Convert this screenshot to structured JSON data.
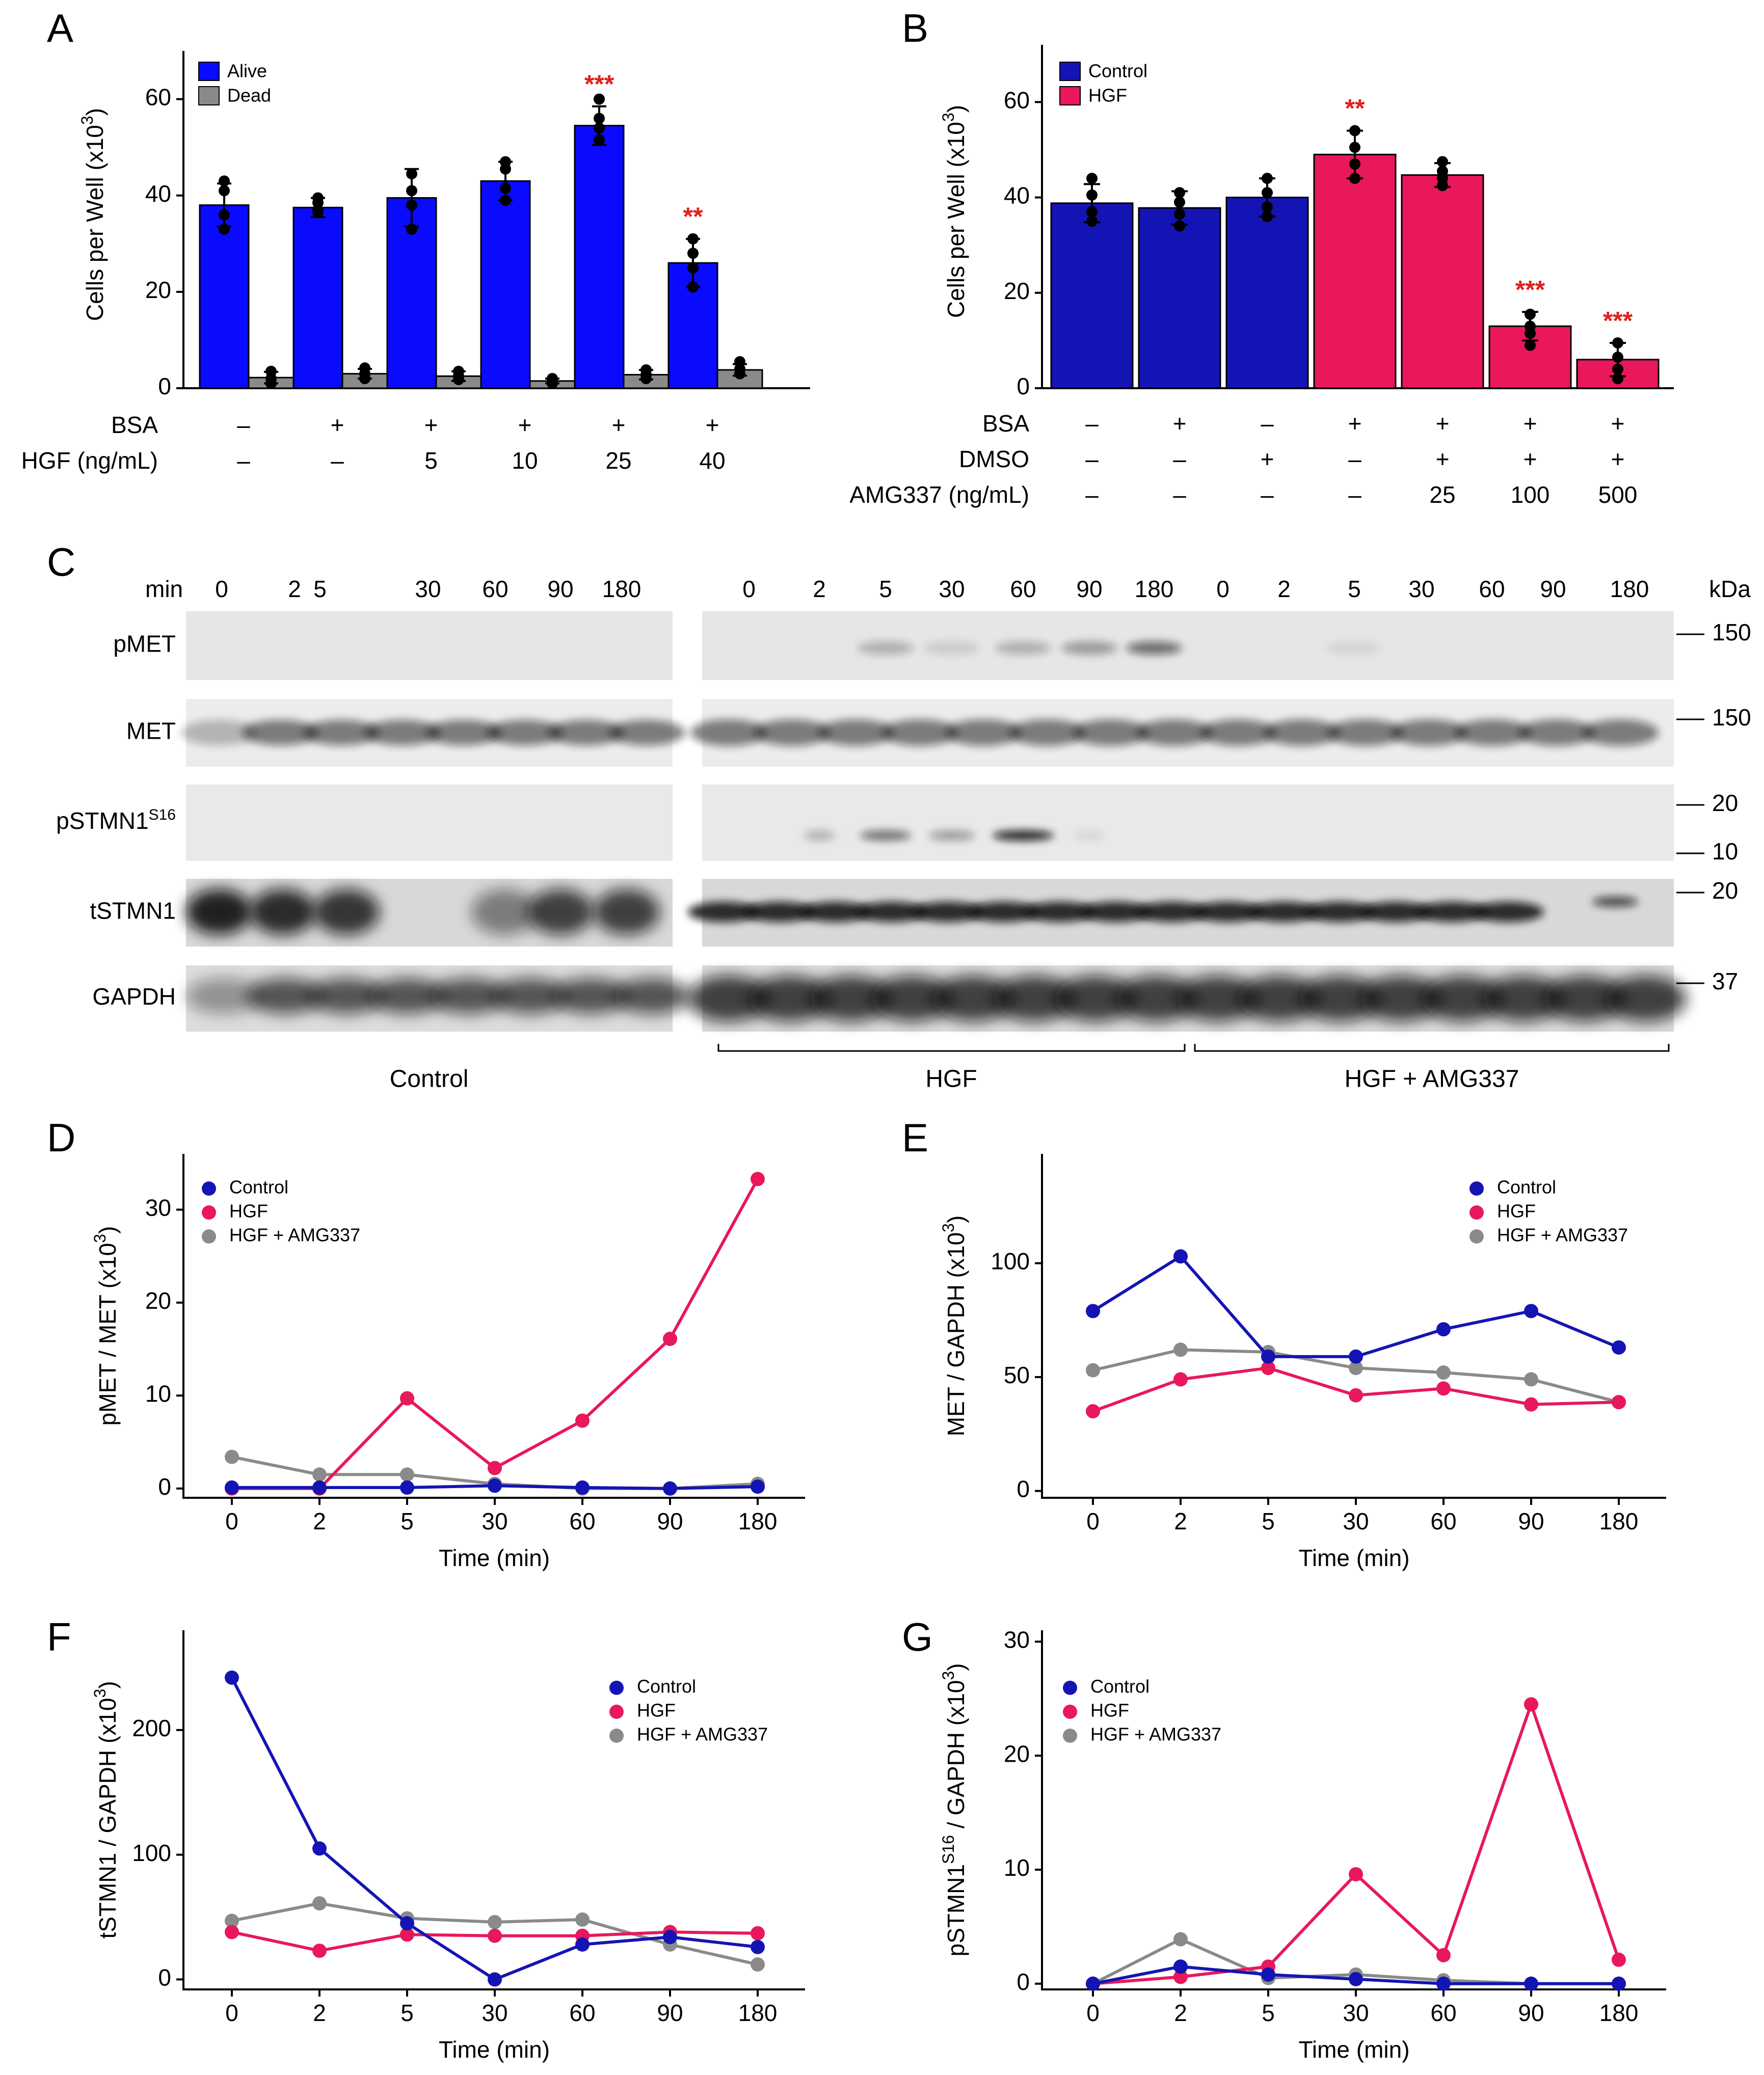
{
  "colors": {
    "blue": "#1f1fd6",
    "bright_blue": "#0a0aff",
    "navy": "#1414b4",
    "magenta": "#e8185a",
    "gray": "#8a8a8a",
    "red": "#e0201c",
    "black": "#000000"
  },
  "chart_data": [
    {
      "panel": "A",
      "type": "bar",
      "ylabel": "Cells per Well (x10",
      "ylabel_sup": "3",
      "ylabel_close": ")",
      "ylim": [
        0,
        70
      ],
      "yticks": [
        "0",
        "20",
        "40",
        "60"
      ],
      "legend": [
        "Alive",
        "Dead"
      ],
      "series": [
        {
          "name": "Alive",
          "values": [
            38,
            37.5,
            39.5,
            43,
            54.5,
            26
          ],
          "errors": [
            4.5,
            2,
            6,
            4,
            4,
            5
          ]
        },
        {
          "name": "Dead",
          "values": [
            2.2,
            3,
            2.5,
            1.5,
            2.8,
            3.8
          ],
          "errors": [
            1.2,
            1,
            1,
            0.5,
            1,
            1.2
          ]
        }
      ],
      "dots": [
        {
          "series": 0,
          "values": [
            [
              43,
              41,
              36,
              33
            ],
            [
              39.5,
              38.5,
              37,
              36.5
            ],
            [
              44.5,
              41,
              38,
              33
            ],
            [
              47,
              45.5,
              41.5,
              39
            ],
            [
              60,
              56,
              54,
              51.5
            ],
            [
              31,
              28,
              25,
              21
            ]
          ]
        },
        {
          "series": 1,
          "values": [
            [
              3.5,
              2,
              1
            ],
            [
              4.2,
              3,
              2
            ],
            [
              3.5,
              2.5,
              1.8
            ],
            [
              2,
              1.5,
              1
            ],
            [
              3.8,
              2.8,
              2
            ],
            [
              5.5,
              4,
              3
            ]
          ]
        }
      ],
      "significance": [
        "",
        "",
        "",
        "",
        "***",
        "**"
      ],
      "conditions": [
        {
          "label": "BSA",
          "values": [
            "–",
            "+",
            "+",
            "+",
            "+",
            "+"
          ]
        },
        {
          "label": "HGF (ng/mL)",
          "values": [
            "–",
            "–",
            "5",
            "10",
            "25",
            "40"
          ]
        }
      ]
    },
    {
      "panel": "B",
      "type": "bar",
      "ylabel": "Cells per Well (x10",
      "ylabel_sup": "3",
      "ylabel_close": ")",
      "ylim": [
        0,
        72
      ],
      "yticks": [
        "0",
        "20",
        "40",
        "60"
      ],
      "legend": [
        "Control",
        "HGF"
      ],
      "values": [
        38.8,
        37.8,
        40,
        49,
        44.7,
        13,
        6
      ],
      "errors": [
        4,
        3.5,
        4,
        5,
        2.5,
        3,
        3.5
      ],
      "groups": [
        "Control",
        "Control",
        "Control",
        "HGF",
        "HGF",
        "HGF",
        "HGF"
      ],
      "dots": [
        [
          44,
          40.5,
          37,
          35
        ],
        [
          41,
          39,
          36.5,
          34
        ],
        [
          44,
          41,
          38,
          36
        ],
        [
          54,
          50.5,
          47,
          44
        ],
        [
          47.5,
          45.5,
          44,
          42.5
        ],
        [
          15.5,
          13,
          11.5,
          9
        ],
        [
          9.5,
          6.5,
          4,
          2
        ]
      ],
      "significance": [
        "",
        "",
        "",
        "**",
        "",
        "***",
        "***"
      ],
      "conditions": [
        {
          "label": "BSA",
          "values": [
            "–",
            "+",
            "–",
            "+",
            "+",
            "+",
            "+"
          ]
        },
        {
          "label": "DMSO",
          "values": [
            "–",
            "–",
            "+",
            "–",
            "+",
            "+",
            "+"
          ]
        },
        {
          "label": "AMG337 (ng/mL)",
          "values": [
            "–",
            "–",
            "–",
            "–",
            "25",
            "100",
            "500"
          ]
        }
      ]
    },
    {
      "panel": "D",
      "type": "line",
      "categories": [
        "0",
        "2",
        "5",
        "30",
        "60",
        "90",
        "180"
      ],
      "xlabel": "Time (min)",
      "ylabel": "pMET / MET (x10",
      "ylabel_sup": "3",
      "ylabel_close": ")",
      "ylim": [
        -1,
        36
      ],
      "yticks": [
        "0",
        "10",
        "20",
        "30"
      ],
      "series": [
        {
          "name": "Control",
          "values": [
            0.1,
            0.1,
            0.1,
            0.3,
            0.1,
            0,
            0.2
          ]
        },
        {
          "name": "HGF",
          "values": [
            0,
            0,
            9.7,
            2.2,
            7.3,
            16.1,
            33.3
          ]
        },
        {
          "name": "HGF + AMG337",
          "values": [
            3.4,
            1.5,
            1.5,
            0.5,
            0,
            0,
            0.5
          ]
        }
      ]
    },
    {
      "panel": "E",
      "type": "line",
      "categories": [
        "0",
        "2",
        "5",
        "30",
        "60",
        "90",
        "180"
      ],
      "xlabel": "Time (min)",
      "ylabel": "MET / GAPDH (x10",
      "ylabel_sup": "3",
      "ylabel_close": ")",
      "ylim": [
        -3,
        148
      ],
      "yticks": [
        "0",
        "50",
        "100"
      ],
      "series": [
        {
          "name": "Control",
          "values": [
            79,
            103,
            59,
            59,
            71,
            79,
            63
          ]
        },
        {
          "name": "HGF",
          "values": [
            35,
            49,
            54,
            42,
            45,
            38,
            39
          ]
        },
        {
          "name": "HGF + AMG337",
          "values": [
            53,
            62,
            61,
            54,
            52,
            49,
            39
          ]
        }
      ]
    },
    {
      "panel": "F",
      "type": "line",
      "categories": [
        "0",
        "2",
        "5",
        "30",
        "60",
        "90",
        "180"
      ],
      "xlabel": "Time (min)",
      "ylabel": "tSTMN1 / GAPDH (x10",
      "ylabel_sup": "3",
      "ylabel_close": ")",
      "ylim": [
        -8,
        280
      ],
      "yticks": [
        "0",
        "100",
        "200"
      ],
      "series": [
        {
          "name": "Control",
          "values": [
            242,
            105,
            45,
            0,
            28,
            34,
            26
          ]
        },
        {
          "name": "HGF",
          "values": [
            38,
            23,
            36,
            35,
            35,
            38,
            37
          ]
        },
        {
          "name": "HGF + AMG337",
          "values": [
            47,
            61,
            49,
            46,
            48,
            28,
            12
          ]
        }
      ]
    },
    {
      "panel": "G",
      "type": "line",
      "categories": [
        "0",
        "2",
        "5",
        "30",
        "60",
        "90",
        "180"
      ],
      "xlabel": "Time (min)",
      "ylabel": "pSTMN1",
      "ylabel_sup": "S16",
      "ylabel_close": " / GAPDH (x10",
      "ylabel_sup2": "3",
      "ylabel_close2": ")",
      "ylim": [
        -0.5,
        31
      ],
      "yticks": [
        "0",
        "10",
        "20",
        "30"
      ],
      "series": [
        {
          "name": "Control",
          "values": [
            0,
            1.5,
            0.8,
            0.4,
            0,
            0,
            0
          ]
        },
        {
          "name": "HGF",
          "values": [
            0,
            0.6,
            1.5,
            9.6,
            2.5,
            24.5,
            2.1
          ]
        },
        {
          "name": "HGF + AMG337",
          "values": [
            0,
            3.9,
            0.5,
            0.8,
            0.3,
            0,
            0
          ]
        }
      ]
    }
  ],
  "blot": {
    "panel_label": "C",
    "time_label": "min",
    "times": [
      "0",
      "2",
      "5",
      "30",
      "60",
      "90",
      "180"
    ],
    "kda_label": "kDa",
    "rows": [
      {
        "label": "pMET",
        "sup": ""
      },
      {
        "label": "MET",
        "sup": ""
      },
      {
        "label": "pSTMN1",
        "sup": "S16"
      },
      {
        "label": "tSTMN1",
        "sup": ""
      },
      {
        "label": "GAPDH",
        "sup": ""
      }
    ],
    "markers": [
      "150",
      "150",
      "20",
      "10",
      "20",
      "37"
    ],
    "groups": [
      "Control",
      "HGF",
      "HGF + AMG337"
    ]
  }
}
